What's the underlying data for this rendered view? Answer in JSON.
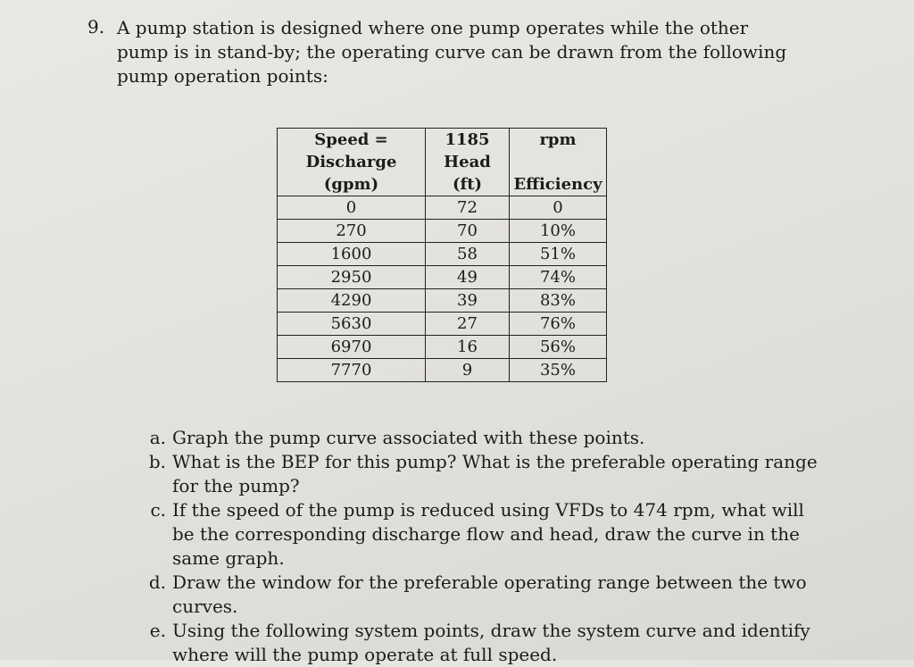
{
  "problem": {
    "number": "9.",
    "intro": "A pump station is designed where one pump operates while the other pump is in stand-by; the operating curve can be drawn from the following pump operation points:"
  },
  "table": {
    "header": {
      "col1": [
        "Speed =",
        "Discharge",
        "(gpm)"
      ],
      "col2": [
        "1185",
        "Head",
        "(ft)"
      ],
      "col3": [
        "rpm",
        "",
        "Efficiency"
      ]
    },
    "rows": [
      {
        "discharge": "0",
        "head": "72",
        "efficiency": "0"
      },
      {
        "discharge": "270",
        "head": "70",
        "efficiency": "10%"
      },
      {
        "discharge": "1600",
        "head": "58",
        "efficiency": "51%"
      },
      {
        "discharge": "2950",
        "head": "49",
        "efficiency": "74%"
      },
      {
        "discharge": "4290",
        "head": "39",
        "efficiency": "83%"
      },
      {
        "discharge": "5630",
        "head": "27",
        "efficiency": "76%"
      },
      {
        "discharge": "6970",
        "head": "16",
        "efficiency": "56%"
      },
      {
        "discharge": "7770",
        "head": "9",
        "efficiency": "35%"
      }
    ]
  },
  "questions": [
    {
      "letter": "a.",
      "text": "Graph the pump curve associated with these points."
    },
    {
      "letter": "b.",
      "text": "What is the BEP for this pump? What is the preferable operating range for the pump?"
    },
    {
      "letter": "c.",
      "text": "If the speed of the pump is reduced using VFDs to 474 rpm, what will be the corresponding discharge flow and head, draw the curve in the same graph."
    },
    {
      "letter": "d.",
      "text": "Draw the window for the preferable operating range between the two curves."
    },
    {
      "letter": "e.",
      "text": "Using the following system points, draw the system curve and identify where will the pump operate at full speed."
    }
  ]
}
